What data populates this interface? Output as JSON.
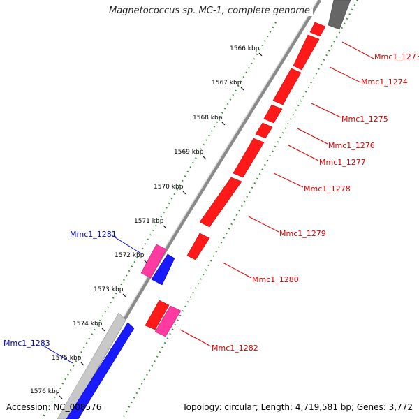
{
  "title": "Magnetococcus sp. MC-1, complete genome",
  "footer": {
    "accession": "Accession: NC_008576",
    "summary": "Topology: circular; Length: 4,719,581 bp; Genes: 3,772"
  },
  "ticks": [
    "1566 kbp",
    "1567 kbp",
    "1568 kbp",
    "1569 kbp",
    "1570 kbp",
    "1571 kbp",
    "1572 kbp",
    "1573 kbp",
    "1574 kbp",
    "1575 kbp",
    "1576 kbp"
  ],
  "colors": {
    "forward_gene": "#ff1a1a",
    "reverse_gene": "#1a1aff",
    "forward_pink": "#ff3aa0",
    "backbone": "#888888",
    "tick_dots": "#2a8a2a",
    "forward_label": "#dd0000",
    "reverse_label": "#0000cc"
  },
  "genes": [
    {
      "name": "Mmc1_1273",
      "strand": "forward"
    },
    {
      "name": "Mmc1_1274",
      "strand": "forward"
    },
    {
      "name": "Mmc1_1275",
      "strand": "forward"
    },
    {
      "name": "Mmc1_1276",
      "strand": "forward"
    },
    {
      "name": "Mmc1_1277",
      "strand": "forward"
    },
    {
      "name": "Mmc1_1278",
      "strand": "forward"
    },
    {
      "name": "Mmc1_1279",
      "strand": "forward"
    },
    {
      "name": "Mmc1_1280",
      "strand": "forward"
    },
    {
      "name": "Mmc1_1281",
      "strand": "reverse"
    },
    {
      "name": "Mmc1_1282",
      "strand": "forward"
    },
    {
      "name": "Mmc1_1283",
      "strand": "reverse"
    }
  ]
}
